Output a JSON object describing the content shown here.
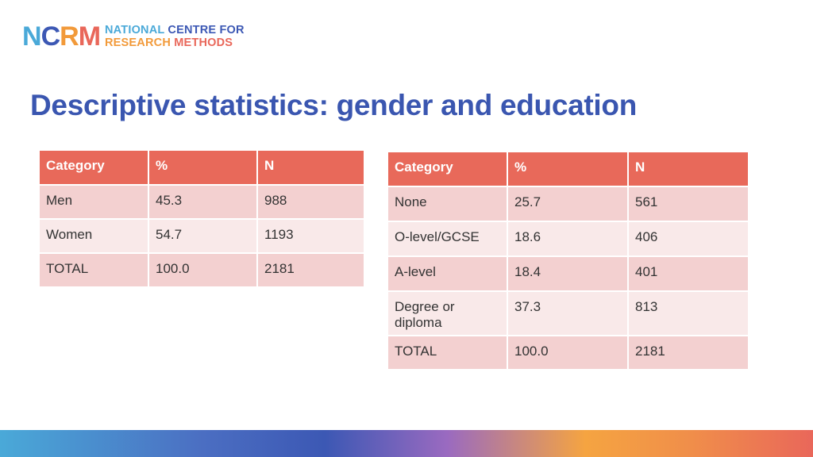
{
  "logo": {
    "mark_letters": [
      "N",
      "C",
      "R",
      "M"
    ],
    "line1": [
      "NATIONAL",
      "CENTRE FOR"
    ],
    "line2": [
      "RESEARCH",
      "METHODS"
    ]
  },
  "title": "Descriptive statistics: gender and education",
  "gender_table": {
    "headers": [
      "Category",
      "%",
      "N"
    ],
    "rows": [
      [
        "Men",
        "45.3",
        "988"
      ],
      [
        "Women",
        "54.7",
        "1193"
      ],
      [
        "TOTAL",
        "100.0",
        "2181"
      ]
    ]
  },
  "education_table": {
    "headers": [
      "Category",
      "%",
      "N"
    ],
    "rows": [
      [
        "None",
        "25.7",
        "561"
      ],
      [
        "O-level/GCSE",
        "18.6",
        "406"
      ],
      [
        "A-level",
        "18.4",
        "401"
      ],
      [
        "Degree or diploma",
        "37.3",
        "813"
      ],
      [
        "TOTAL",
        "100.0",
        "2181"
      ]
    ]
  },
  "colors": {
    "title": "#3a56b0",
    "header_bg": "#e8695a",
    "row_dark": "#f3d0d0",
    "row_light": "#f9e9e9",
    "logo_blue": "#4aa9d8",
    "logo_navy": "#3c58b4",
    "logo_orange": "#f29a3a",
    "logo_red": "#e9675a"
  }
}
